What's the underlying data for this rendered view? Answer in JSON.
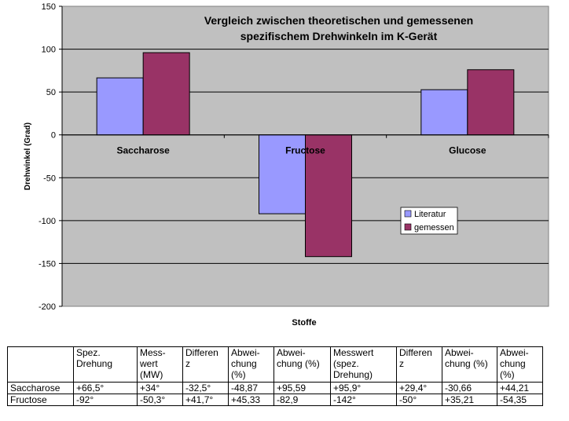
{
  "chart_data": {
    "type": "bar",
    "title": "Vergleich zwischen theoretischen und gemessenen\nspezifischem Drehwinkeln im K-Gerät",
    "xlabel": "Stoffe",
    "ylabel": "Drehwinkel (Grad)",
    "categories": [
      "Saccharose",
      "Fructose",
      "Glucose"
    ],
    "ylim": [
      -200,
      150
    ],
    "yticks": [
      150,
      100,
      50,
      0,
      -50,
      -100,
      -150,
      -200
    ],
    "grid": true,
    "legend_position": "right-center",
    "series": [
      {
        "name": "Literatur",
        "values": [
          66.5,
          -92,
          52.7
        ],
        "color": "#9999ff"
      },
      {
        "name": "gemessen",
        "values": [
          95.9,
          -142,
          76
        ],
        "color": "#993366"
      }
    ],
    "plot_background": "#c0c0c0"
  },
  "table": {
    "headers": [
      "",
      "Spez.\nDrehung",
      "Mess-\nwert\n(MW)",
      "Differen\nz",
      "Abwei-\nchung\n(%)",
      "Abwei-\nchung (%)",
      "Messwert\n(spez.\nDrehung)",
      "Differen\nz",
      "Abwei-\nchung (%)",
      "Abwei-\nchung\n(%)"
    ],
    "rows": [
      [
        "Saccharose",
        "+66,5°",
        "+34°",
        "-32,5°",
        "-48,87",
        "+95,59",
        "+95,9°",
        "+29,4°",
        "-30,66",
        "+44,21"
      ],
      [
        "Fructose",
        "-92°",
        "-50,3°",
        "+41,7°",
        "+45,33",
        "-82,9",
        "-142°",
        "-50°",
        "+35,21",
        "-54,35"
      ]
    ]
  }
}
